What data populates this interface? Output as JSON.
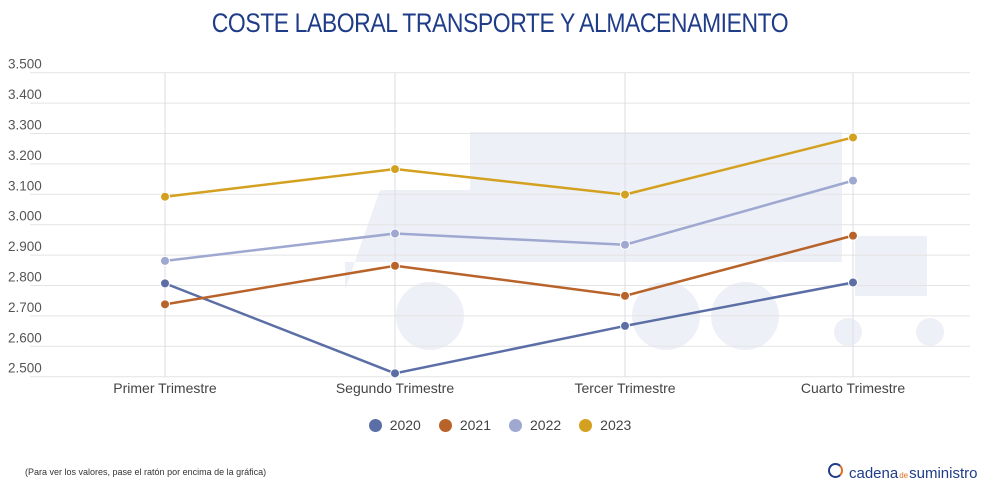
{
  "chart_data": {
    "type": "line",
    "title": "COSTE LABORAL TRANSPORTE Y ALMACENAMIENTO",
    "categories": [
      "Primer Trimestre",
      "Segundo Trimestre",
      "Tercer Trimestre",
      "Cuarto Trimestre"
    ],
    "ylim": [
      2500,
      3500
    ],
    "yticks": [
      "2.500",
      "2.600",
      "2.700",
      "2.800",
      "2.900",
      "3.000",
      "3.100",
      "3.200",
      "3.300",
      "3.400",
      "3.500"
    ],
    "grid": true,
    "legend_position": "bottom",
    "series": [
      {
        "name": "2020",
        "color": "#5b6ea6",
        "values": [
          2807,
          2511,
          2667,
          2810
        ]
      },
      {
        "name": "2021",
        "color": "#b8632a",
        "values": [
          2738,
          2865,
          2766,
          2964
        ]
      },
      {
        "name": "2022",
        "color": "#9ea8d0",
        "values": [
          2881,
          2971,
          2934,
          3145
        ]
      },
      {
        "name": "2023",
        "color": "#d4a020",
        "values": [
          3092,
          3183,
          3099,
          3287
        ]
      }
    ]
  },
  "footer": {
    "note": "(Para ver los valores, pase el ratón por encima de la gráfica)",
    "logo_text_1": "cadena",
    "logo_text_de": "de",
    "logo_text_2": "suministro"
  }
}
